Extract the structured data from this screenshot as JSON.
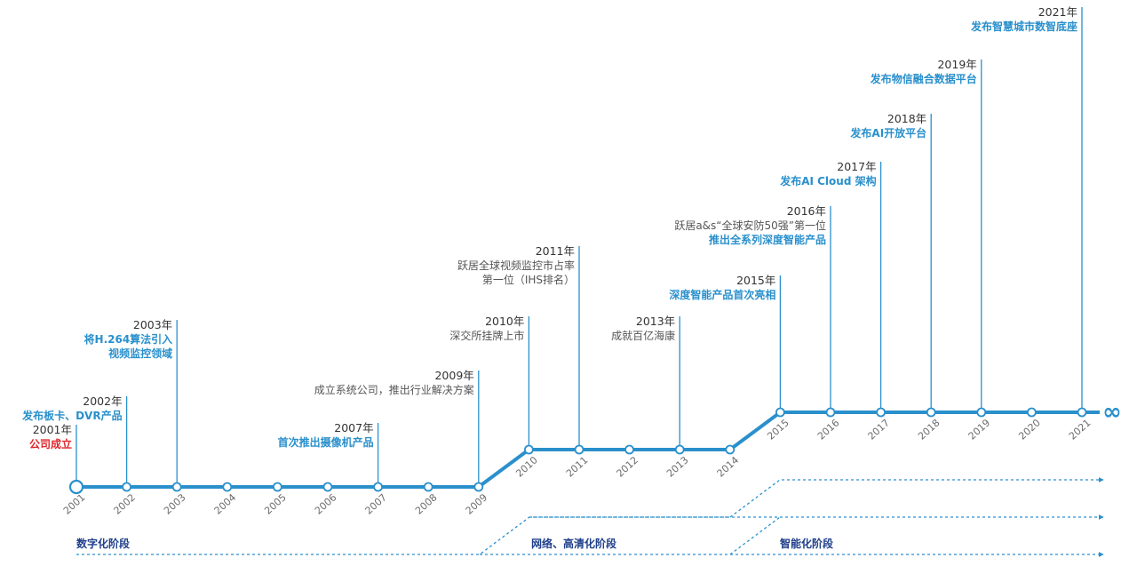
{
  "colors": {
    "line": "#2a90cc",
    "highlight": "#2a90cc",
    "accent_red": "#e0252b",
    "phase_text": "#1f3f8a"
  },
  "axis_years": [
    "2001",
    "2002",
    "2003",
    "2004",
    "2005",
    "2006",
    "2007",
    "2008",
    "2009",
    "2010",
    "2011",
    "2012",
    "2013",
    "2014",
    "2015",
    "2016",
    "2017",
    "2018",
    "2019",
    "2020",
    "2021"
  ],
  "infinity_symbol": "∞",
  "events": [
    {
      "year": "2001年",
      "lines": [
        {
          "text": "公司成立",
          "style": "red"
        }
      ]
    },
    {
      "year": "2002年",
      "lines": [
        {
          "text": "发布板卡、DVR产品",
          "style": "blue"
        }
      ]
    },
    {
      "year": "2003年",
      "lines": [
        {
          "text": "将H.264算法引入",
          "style": "blue"
        },
        {
          "text": "视频监控领域",
          "style": "blue"
        }
      ]
    },
    {
      "year": "2007年",
      "lines": [
        {
          "text": "首次推出摄像机产品",
          "style": "blue"
        }
      ]
    },
    {
      "year": "2009年",
      "lines": [
        {
          "text": "成立系统公司，推出行业解决方案",
          "style": "plain"
        }
      ]
    },
    {
      "year": "2010年",
      "lines": [
        {
          "text": "深交所挂牌上市",
          "style": "plain"
        }
      ]
    },
    {
      "year": "2011年",
      "lines": [
        {
          "text": "跃居全球视频监控市占率",
          "style": "plain"
        },
        {
          "text": "第一位（IHS排名）",
          "style": "plain"
        }
      ]
    },
    {
      "year": "2013年",
      "lines": [
        {
          "text": "成就百亿海康",
          "style": "plain"
        }
      ]
    },
    {
      "year": "2015年",
      "lines": [
        {
          "text": "深度智能产品首次亮相",
          "style": "blue"
        }
      ]
    },
    {
      "year": "2016年",
      "lines": [
        {
          "text": "跃居a&s“全球安防50强”第一位",
          "style": "plain"
        },
        {
          "text": "推出全系列深度智能产品",
          "style": "blue"
        }
      ]
    },
    {
      "year": "2017年",
      "lines": [
        {
          "text": "发布AI Cloud 架构",
          "style": "blue"
        }
      ]
    },
    {
      "year": "2018年",
      "lines": [
        {
          "text": "发布AI开放平台",
          "style": "blue"
        }
      ]
    },
    {
      "year": "2019年",
      "lines": [
        {
          "text": "发布物信融合数据平台",
          "style": "blue"
        }
      ]
    },
    {
      "year": "2021年",
      "lines": [
        {
          "text": "发布智慧城市数智底座",
          "style": "blue"
        }
      ]
    }
  ],
  "phases": [
    {
      "label": "数字化阶段"
    },
    {
      "label": "网络、高清化阶段"
    },
    {
      "label": "智能化阶段"
    }
  ]
}
